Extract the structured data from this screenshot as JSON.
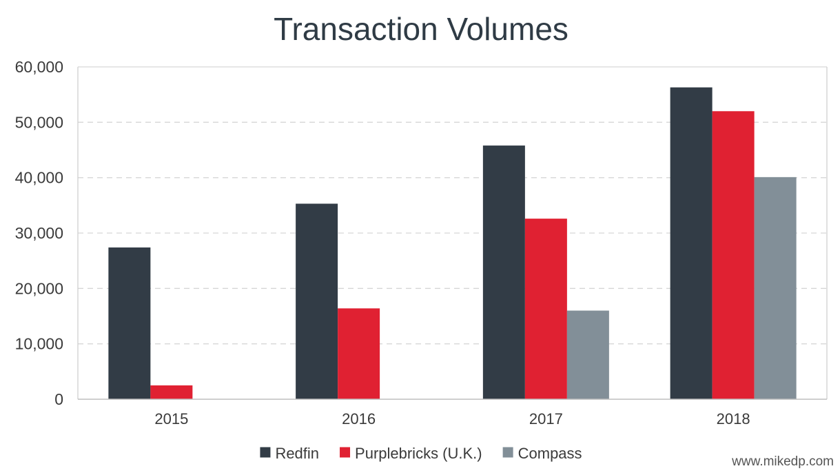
{
  "chart_data": {
    "type": "bar",
    "title": "Transaction Volumes",
    "xlabel": "",
    "ylabel": "",
    "categories": [
      "2015",
      "2016",
      "2017",
      "2018"
    ],
    "series": [
      {
        "name": "Redfin",
        "color": "#323c46",
        "values": [
          27400,
          35300,
          45800,
          56300
        ]
      },
      {
        "name": "Purplebricks (U.K.)",
        "color": "#e02132",
        "values": [
          2500,
          16400,
          32600,
          52000
        ]
      },
      {
        "name": "Compass",
        "color": "#828f98",
        "values": [
          null,
          null,
          16000,
          40100
        ]
      }
    ],
    "ylim": [
      0,
      60000
    ],
    "yticks": [
      0,
      10000,
      20000,
      30000,
      40000,
      50000,
      60000
    ],
    "ytick_labels": [
      "0",
      "10,000",
      "20,000",
      "30,000",
      "40,000",
      "50,000",
      "60,000"
    ],
    "grid": true,
    "legend_position": "bottom-center"
  },
  "watermark": "www.mikedp.com"
}
